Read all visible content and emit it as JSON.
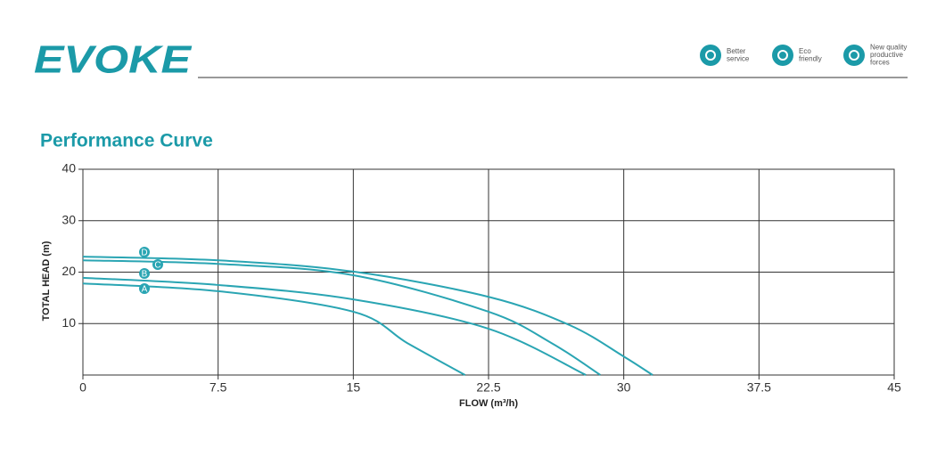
{
  "header": {
    "logo": "EVOKE",
    "badges": [
      {
        "lines": [
          "Better",
          "service"
        ]
      },
      {
        "lines": [
          "Eco",
          "friendly"
        ]
      },
      {
        "lines": [
          "New quality",
          "productive",
          "forces"
        ]
      }
    ]
  },
  "section_title": "Performance Curve",
  "chart_data": {
    "type": "line",
    "x_label": "FLOW (m³/h)",
    "y_label": "TOTAL HEAD (m)",
    "xlim": [
      0,
      45
    ],
    "xticks": [
      0,
      7.5,
      15,
      22.5,
      30,
      37.5,
      45
    ],
    "ylim": [
      0,
      40
    ],
    "yticks": [
      10,
      20,
      30,
      40
    ],
    "grid": true,
    "series": [
      {
        "name": "A",
        "color": "#2aa5b3",
        "x": [
          0,
          7.5,
          15,
          18,
          21.2
        ],
        "values": [
          17.8,
          16.3,
          12.3,
          6.2,
          0
        ]
      },
      {
        "name": "B",
        "color": "#2aa5b3",
        "x": [
          0,
          7.5,
          15,
          22.5,
          27.9
        ],
        "values": [
          18.9,
          17.5,
          14.7,
          9.0,
          0
        ]
      },
      {
        "name": "C",
        "color": "#2aa5b3",
        "x": [
          0,
          7.5,
          15,
          22.5,
          26,
          28.7
        ],
        "values": [
          22.3,
          21.6,
          19.4,
          12.3,
          6.2,
          0
        ]
      },
      {
        "name": "D",
        "color": "#2aa5b3",
        "x": [
          0,
          7.5,
          15,
          22.5,
          27,
          30,
          31.6
        ],
        "values": [
          23.0,
          22.3,
          20.1,
          15.2,
          9.7,
          3.6,
          0
        ]
      }
    ]
  }
}
